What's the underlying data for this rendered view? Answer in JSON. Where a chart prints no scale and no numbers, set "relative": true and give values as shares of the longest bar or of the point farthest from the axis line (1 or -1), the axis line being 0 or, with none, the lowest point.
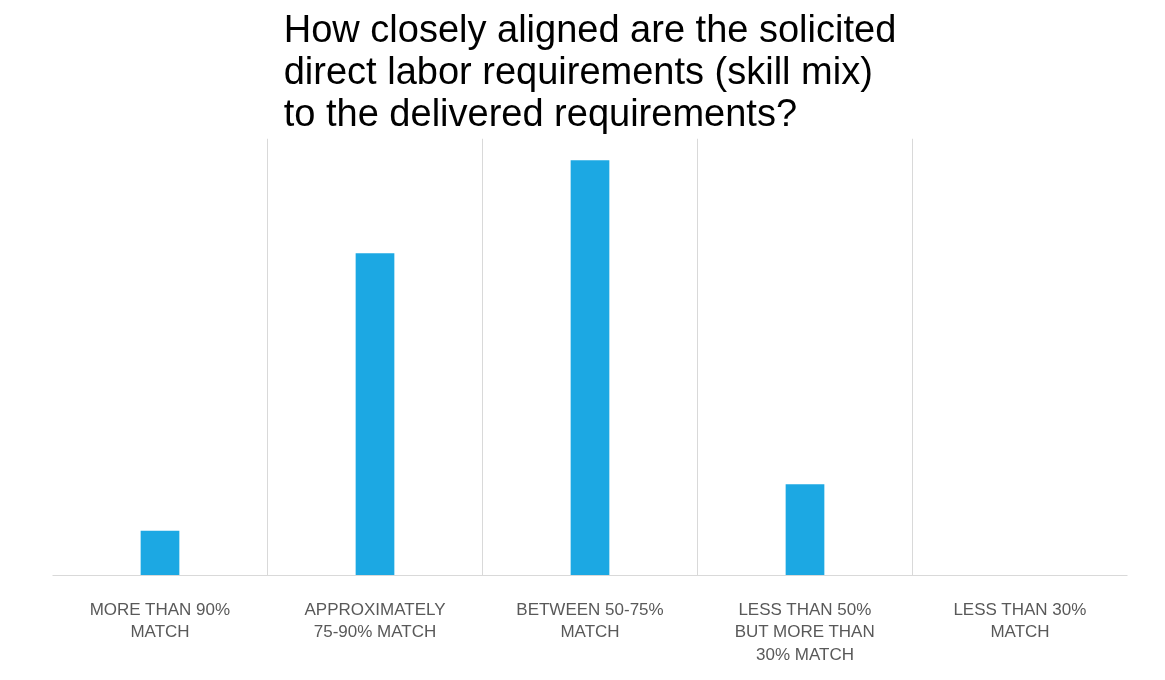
{
  "chart_data": {
    "type": "bar",
    "title": "How closely aligned are the solicited direct labor requirements (skill mix) to the delivered requirements?",
    "categories": [
      "MORE THAN 90% MATCH",
      "APPROXIMATELY 75-90% MATCH",
      "BETWEEN 50-75% MATCH",
      "LESS THAN 50% BUT MORE THAN 30% MATCH",
      "LESS THAN 30% MATCH"
    ],
    "values": [
      0.108,
      0.776,
      1,
      0.22,
      0
    ],
    "color": "#1ca8e3",
    "relative": true,
    "grid": "x"
  }
}
